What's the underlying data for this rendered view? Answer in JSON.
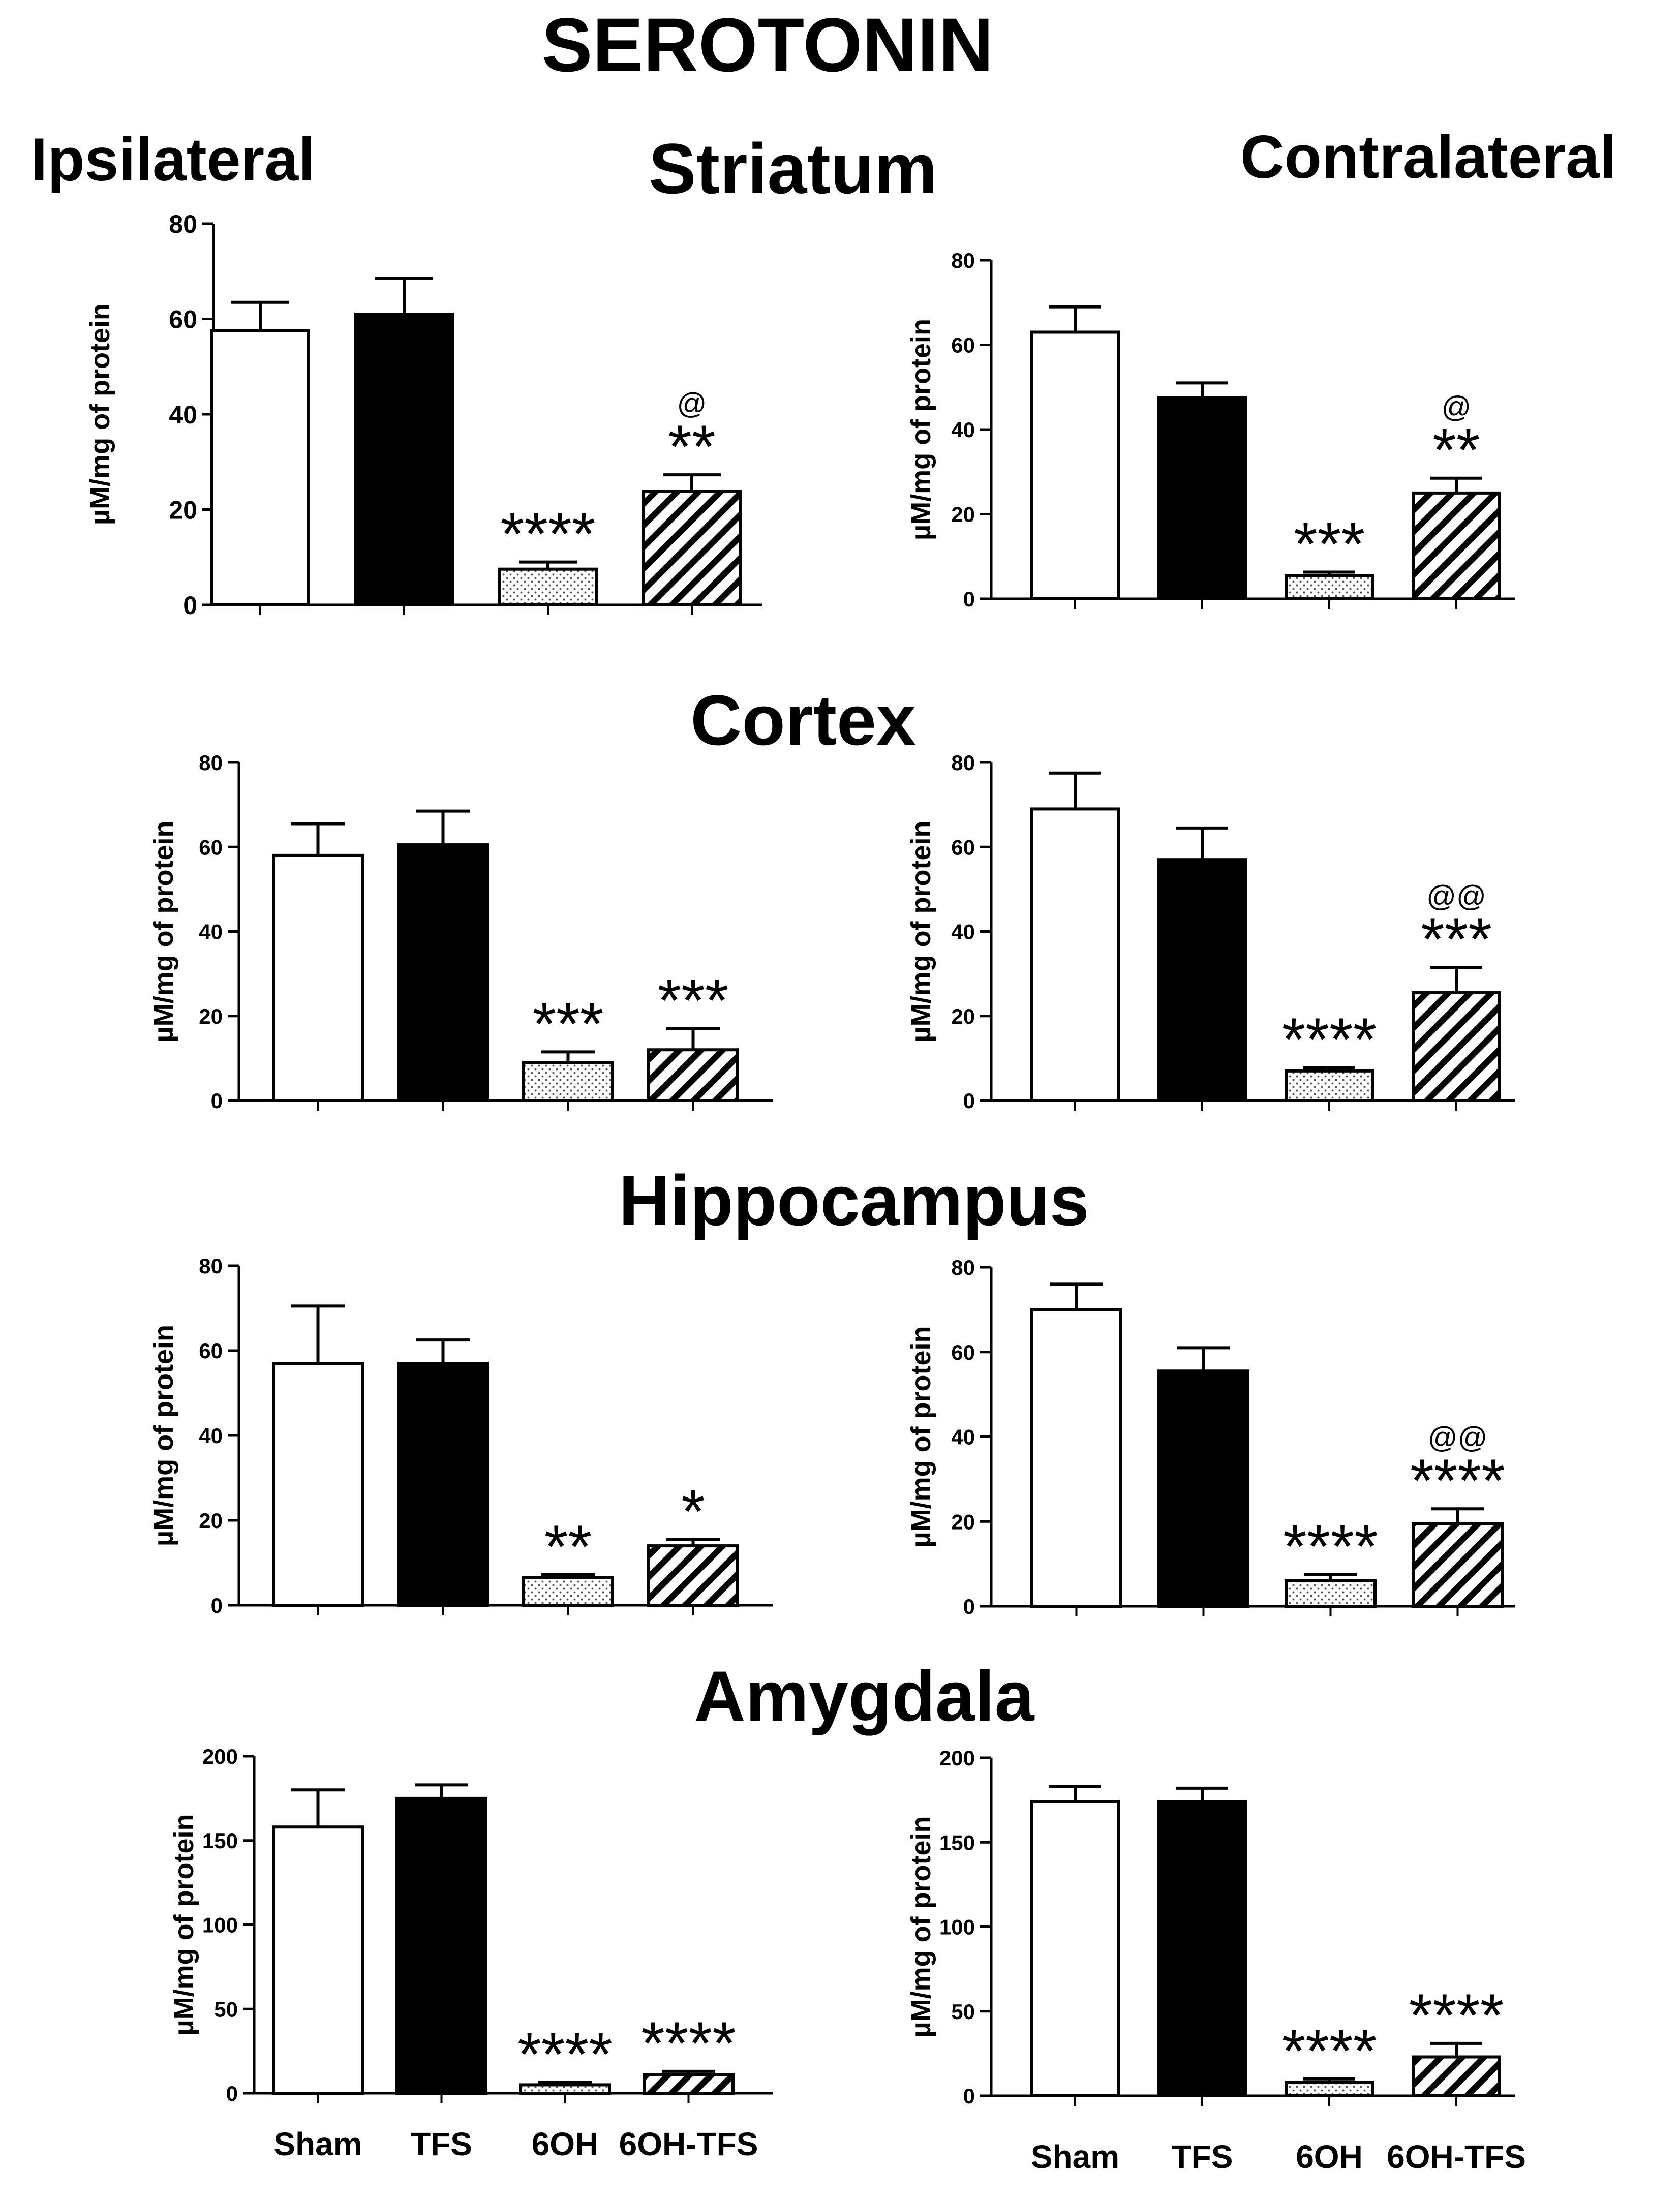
{
  "figure": {
    "title": "SEROTONIN",
    "side_labels": {
      "left": "Ipsilateral",
      "right": "Contralateral"
    },
    "region_titles": [
      "Striatum",
      "Cortex",
      "Hippocampus",
      "Amygdala"
    ],
    "colors": {
      "axis": "#000000",
      "bar_stroke": "#000000",
      "sham": "#ffffff",
      "tfs": "#000000",
      "sixoh": "#f2f2f2",
      "sixoh_tfs": "#ffffff"
    },
    "bar_patterns": [
      "white",
      "black",
      "dotted",
      "diagonal-hatch"
    ]
  },
  "chart_data": [
    {
      "type": "bar",
      "region": "Striatum",
      "side": "Ipsilateral",
      "categories": [
        "Sham",
        "TFS",
        "6OH",
        "6OH-TFS"
      ],
      "values": [
        57.5,
        61,
        7.5,
        23.8
      ],
      "errors": [
        6,
        7.5,
        1.5,
        3.5
      ],
      "ylabel": "µM/mg of protein",
      "ylim": [
        0,
        80
      ],
      "yticks": [
        0,
        20,
        40,
        60,
        80
      ],
      "significance": [
        "",
        "",
        "****",
        "**"
      ],
      "vs_tfs": [
        "",
        "",
        "",
        "@"
      ]
    },
    {
      "type": "bar",
      "region": "Striatum",
      "side": "Contralateral",
      "categories": [
        "Sham",
        "TFS",
        "6OH",
        "6OH-TFS"
      ],
      "values": [
        63,
        47.5,
        5.5,
        25
      ],
      "errors": [
        6,
        3.5,
        0.8,
        3.5
      ],
      "ylabel": "µM/mg of protein",
      "ylim": [
        0,
        80
      ],
      "yticks": [
        0,
        20,
        40,
        60,
        80
      ],
      "significance": [
        "",
        "",
        "***",
        "**"
      ],
      "vs_tfs": [
        "",
        "",
        "",
        "@"
      ]
    },
    {
      "type": "bar",
      "region": "Cortex",
      "side": "Ipsilateral",
      "categories": [
        "Sham",
        "TFS",
        "6OH",
        "6OH-TFS"
      ],
      "values": [
        58,
        60.5,
        9,
        12
      ],
      "errors": [
        7.5,
        8,
        2.5,
        5
      ],
      "ylabel": "µM/mg of protein",
      "ylim": [
        0,
        80
      ],
      "yticks": [
        0,
        20,
        40,
        60,
        80
      ],
      "significance": [
        "",
        "",
        "***",
        "***"
      ],
      "vs_tfs": [
        "",
        "",
        "",
        ""
      ]
    },
    {
      "type": "bar",
      "region": "Cortex",
      "side": "Contralateral",
      "categories": [
        "Sham",
        "TFS",
        "6OH",
        "6OH-TFS"
      ],
      "values": [
        69,
        57,
        7,
        25.5
      ],
      "errors": [
        8.5,
        7.5,
        0.8,
        6
      ],
      "ylabel": "µM/mg of protein",
      "ylim": [
        0,
        80
      ],
      "yticks": [
        0,
        20,
        40,
        60,
        80
      ],
      "significance": [
        "",
        "",
        "****",
        "***"
      ],
      "vs_tfs": [
        "",
        "",
        "",
        "@@"
      ]
    },
    {
      "type": "bar",
      "region": "Hippocampus",
      "side": "Ipsilateral",
      "categories": [
        "Sham",
        "TFS",
        "6OH",
        "6OH-TFS"
      ],
      "values": [
        57,
        57,
        6.5,
        14
      ],
      "errors": [
        13.5,
        5.5,
        0.7,
        1.5
      ],
      "ylabel": "µM/mg of protein",
      "ylim": [
        0,
        80
      ],
      "yticks": [
        0,
        20,
        40,
        60,
        80
      ],
      "significance": [
        "",
        "",
        "**",
        "*"
      ],
      "vs_tfs": [
        "",
        "",
        "",
        ""
      ]
    },
    {
      "type": "bar",
      "region": "Hippocampus",
      "side": "Contralateral",
      "categories": [
        "Sham",
        "TFS",
        "6OH",
        "6OH-TFS"
      ],
      "values": [
        70,
        55.5,
        6,
        19.5
      ],
      "errors": [
        6,
        5.5,
        1.5,
        3.5
      ],
      "ylabel": "µM/mg of protein",
      "ylim": [
        0,
        80
      ],
      "yticks": [
        0,
        20,
        40,
        60,
        80
      ],
      "significance": [
        "",
        "",
        "****",
        "****"
      ],
      "vs_tfs": [
        "",
        "",
        "",
        "@@"
      ]
    },
    {
      "type": "bar",
      "region": "Amygdala",
      "side": "Ipsilateral",
      "categories": [
        "Sham",
        "TFS",
        "6OH",
        "6OH-TFS"
      ],
      "values": [
        158,
        175,
        5,
        11
      ],
      "errors": [
        22,
        8,
        1.5,
        2
      ],
      "ylabel": "µM/mg of protein",
      "ylim": [
        0,
        200
      ],
      "yticks": [
        0,
        50,
        100,
        150,
        200
      ],
      "significance": [
        "",
        "",
        "****",
        "****"
      ],
      "vs_tfs": [
        "",
        "",
        "",
        ""
      ]
    },
    {
      "type": "bar",
      "region": "Amygdala",
      "side": "Contralateral",
      "categories": [
        "Sham",
        "TFS",
        "6OH",
        "6OH-TFS"
      ],
      "values": [
        174,
        174,
        8,
        23
      ],
      "errors": [
        9,
        8,
        2,
        8
      ],
      "ylabel": "µM/mg of protein",
      "ylim": [
        0,
        200
      ],
      "yticks": [
        0,
        50,
        100,
        150,
        200
      ],
      "significance": [
        "",
        "",
        "****",
        "****"
      ],
      "vs_tfs": [
        "",
        "",
        "",
        ""
      ]
    }
  ]
}
